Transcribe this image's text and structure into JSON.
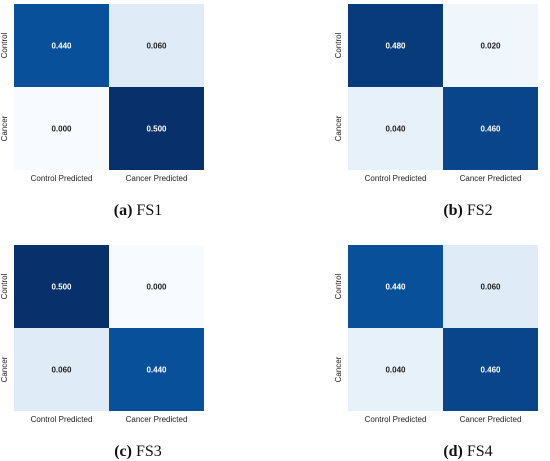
{
  "chart_data": [
    {
      "type": "heatmap",
      "rows": [
        "Control",
        "Cancer"
      ],
      "columns": [
        "Control Predicted",
        "Cancer Predicted"
      ],
      "values": [
        [
          0.44,
          0.06
        ],
        [
          0.0,
          0.5
        ]
      ],
      "cell_labels": [
        [
          "0.440",
          "0.060"
        ],
        [
          "0.000",
          "0.500"
        ]
      ],
      "caption_tag": "(a)",
      "caption_text": "FS1"
    },
    {
      "type": "heatmap",
      "rows": [
        "Control",
        "Cancer"
      ],
      "columns": [
        "Control Predicted",
        "Cancer Predicted"
      ],
      "values": [
        [
          0.48,
          0.02
        ],
        [
          0.04,
          0.46
        ]
      ],
      "cell_labels": [
        [
          "0.480",
          "0.020"
        ],
        [
          "0.040",
          "0.460"
        ]
      ],
      "caption_tag": "(b)",
      "caption_text": "FS2"
    },
    {
      "type": "heatmap",
      "rows": [
        "Control",
        "Cancer"
      ],
      "columns": [
        "Control Predicted",
        "Cancer Predicted"
      ],
      "values": [
        [
          0.5,
          0.0
        ],
        [
          0.06,
          0.44
        ]
      ],
      "cell_labels": [
        [
          "0.500",
          "0.000"
        ],
        [
          "0.060",
          "0.440"
        ]
      ],
      "caption_tag": "(c)",
      "caption_text": "FS3"
    },
    {
      "type": "heatmap",
      "rows": [
        "Control",
        "Cancer"
      ],
      "columns": [
        "Control Predicted",
        "Cancer Predicted"
      ],
      "values": [
        [
          0.44,
          0.06
        ],
        [
          0.04,
          0.46
        ]
      ],
      "cell_labels": [
        [
          "0.440",
          "0.060"
        ],
        [
          "0.040",
          "0.460"
        ]
      ],
      "caption_tag": "(d)",
      "caption_text": "FS4"
    }
  ],
  "colormap": {
    "name": "Blues",
    "low": "#f7fbff",
    "high": "#08306b",
    "vmin": 0.0,
    "vmax": 0.5,
    "dark_text": "#222222",
    "light_text": "#ffffff"
  }
}
